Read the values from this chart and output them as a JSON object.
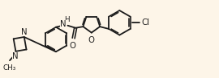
{
  "background_color": "#fdf5e8",
  "line_color": "#1a1a1a",
  "line_width": 1.3,
  "font_size": 6.8,
  "figsize": [
    2.7,
    0.97
  ],
  "dpi": 100,
  "xlim": [
    0,
    27
  ],
  "ylim": [
    0,
    9.7
  ]
}
